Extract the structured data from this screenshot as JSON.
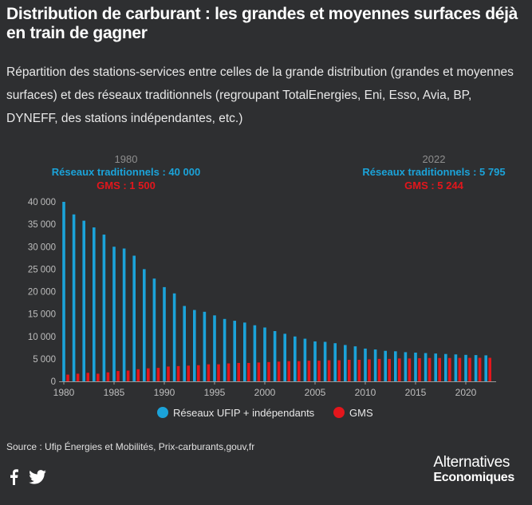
{
  "title": "Distribution de carburant : les grandes et moyennes surfaces déjà en train de gagner",
  "subtitle": "Répartition des stations-services entre celles de la grande distribution (grandes et moyennes surfaces) et des réseaux traditionnels (regroupant TotalEnergies, Eni, Esso, Avia, BP, DYNEFF, des stations indépendantes, etc.)",
  "source": "Source : Ufip Énergies et Mobilités, Prix-carburants,gouv,fr",
  "brand": {
    "line1": "Alternatives",
    "line2": "Economiques"
  },
  "social": [
    "facebook-icon",
    "twitter-icon"
  ],
  "colors": {
    "background": "#2e2f31",
    "traditional": "#1ba3d9",
    "gms": "#e3161c",
    "year_label": "#8e8e8e"
  },
  "chart_data": {
    "type": "bar",
    "x": [
      1980,
      1981,
      1982,
      1983,
      1984,
      1985,
      1986,
      1987,
      1988,
      1989,
      1990,
      1991,
      1992,
      1993,
      1994,
      1995,
      1996,
      1997,
      1998,
      1999,
      2000,
      2001,
      2002,
      2003,
      2004,
      2005,
      2006,
      2007,
      2008,
      2009,
      2010,
      2011,
      2012,
      2013,
      2014,
      2015,
      2016,
      2017,
      2018,
      2019,
      2020,
      2021,
      2022
    ],
    "series": [
      {
        "name": "Réseaux UFIP + indépendants",
        "color": "#1ba3d9",
        "values": [
          40000,
          37200,
          35800,
          34300,
          32700,
          30000,
          29600,
          28000,
          25000,
          22900,
          21000,
          19600,
          16800,
          15900,
          15500,
          14700,
          13900,
          13500,
          13100,
          12500,
          12000,
          11200,
          10600,
          10000,
          9500,
          8900,
          8800,
          8500,
          8100,
          7800,
          7300,
          7100,
          6800,
          6700,
          6500,
          6400,
          6300,
          6200,
          6100,
          6000,
          5900,
          5850,
          5795
        ]
      },
      {
        "name": "GMS",
        "color": "#e3161c",
        "values": [
          1500,
          1700,
          1900,
          1700,
          2000,
          2300,
          2400,
          2700,
          2900,
          3000,
          3300,
          3400,
          3500,
          3600,
          3800,
          3800,
          4000,
          4100,
          4100,
          4200,
          4300,
          4400,
          4500,
          4500,
          4600,
          4600,
          4700,
          4700,
          4800,
          4800,
          4900,
          5000,
          5000,
          5100,
          5100,
          5150,
          5200,
          5200,
          5200,
          5220,
          5230,
          5240,
          5244
        ]
      }
    ],
    "xticks": [
      1980,
      1985,
      1990,
      1995,
      2000,
      2005,
      2010,
      2015,
      2020
    ],
    "yticks": [
      0,
      5000,
      10000,
      15000,
      20000,
      25000,
      30000,
      35000,
      40000
    ],
    "ytick_labels": [
      "0",
      "5 000",
      "10 000",
      "15 000",
      "20 000",
      "25 000",
      "30 000",
      "35 000",
      "40 000"
    ],
    "ylim": [
      0,
      40000
    ],
    "legend_placement": "bottom-center",
    "annotations": [
      {
        "year": "1980",
        "line1": "Réseaux traditionnels : 40 000",
        "line2": "GMS : 1 500",
        "align": "left"
      },
      {
        "year": "2022",
        "line1": "Réseaux traditionnels : 5 795",
        "line2": "GMS : 5 244",
        "align": "right"
      }
    ]
  }
}
